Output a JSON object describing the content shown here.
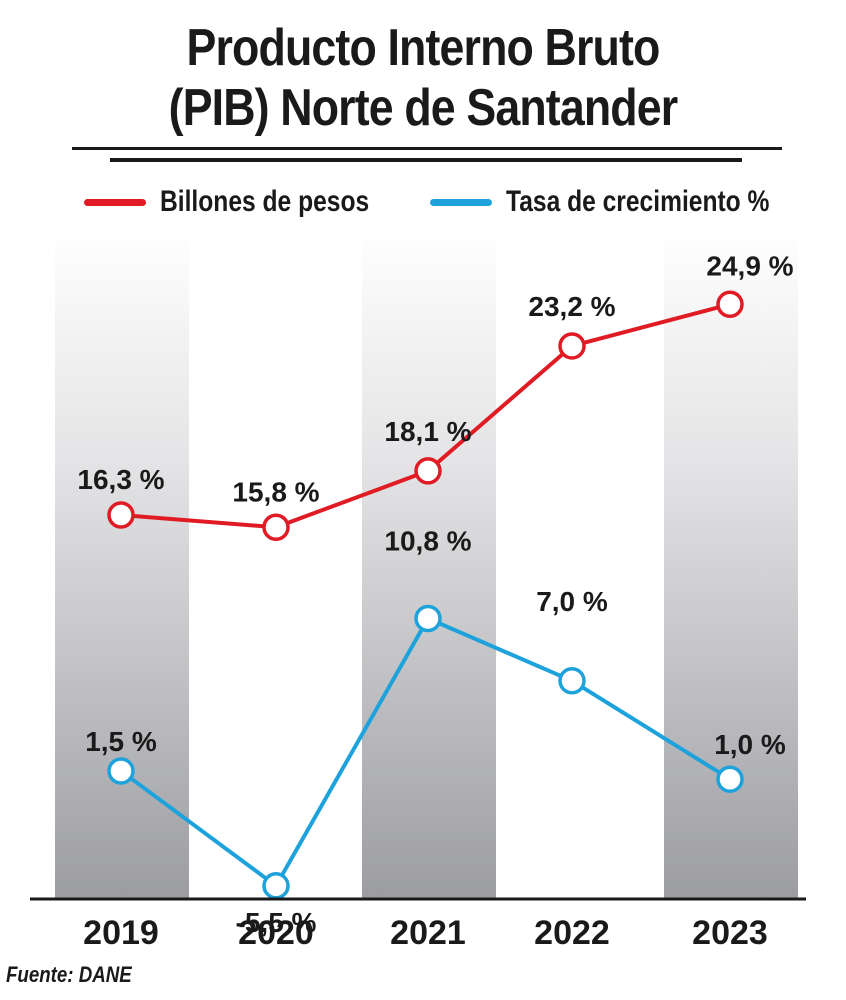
{
  "title_lines": [
    "Producto Interno Bruto",
    "(PIB) Norte de Santander"
  ],
  "legend": {
    "series1_label": "Billones de pesos",
    "series2_label": "Tasa de crecimiento %"
  },
  "source": "Fuente: DANE",
  "colors": {
    "red": "#e01b24",
    "blue": "#1ea2db",
    "text": "#1a1a1a"
  },
  "chart_data": {
    "type": "line",
    "title": "Producto Interno Bruto (PIB) Norte de Santander",
    "xlabel": "",
    "ylabel": "",
    "categories": [
      "2019",
      "2020",
      "2021",
      "2022",
      "2023"
    ],
    "series": [
      {
        "name": "Billones de pesos",
        "values": [
          16.3,
          15.8,
          18.1,
          23.2,
          24.9
        ],
        "labels": [
          "16,3 %",
          "15,8 %",
          "18,1 %",
          "23,2 %",
          "24,9  %"
        ]
      },
      {
        "name": "Tasa de crecimiento %",
        "values": [
          1.5,
          -5.5,
          10.8,
          7.0,
          1.0
        ],
        "labels": [
          "1,5 %",
          "-5,5 %",
          "10,8 %",
          "7,0 %",
          "1,0  %"
        ]
      }
    ],
    "legend_position": "top",
    "source": "Fuente: DANE"
  }
}
